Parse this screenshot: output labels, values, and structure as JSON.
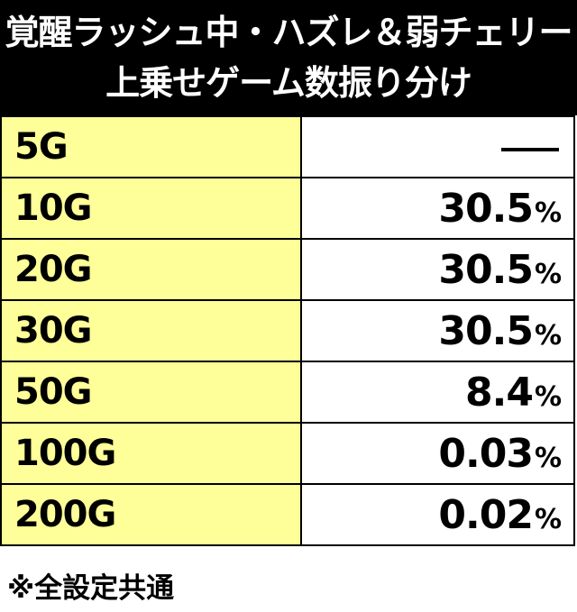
{
  "title": {
    "line1": "覚醒ラッシュ中・ハズレ＆弱チェリー",
    "line2": "上乗せゲーム数振り分け"
  },
  "rows": [
    {
      "label": "5G",
      "value": "—",
      "unit": ""
    },
    {
      "label": "10G",
      "value": "30.5",
      "unit": "%"
    },
    {
      "label": "20G",
      "value": "30.5",
      "unit": "%"
    },
    {
      "label": "30G",
      "value": "30.5",
      "unit": "%"
    },
    {
      "label": "50G",
      "value": "8.4",
      "unit": "%"
    },
    {
      "label": "100G",
      "value": "0.03",
      "unit": "%"
    },
    {
      "label": "200G",
      "value": "0.02",
      "unit": "%"
    }
  ],
  "footnote": "※全設定共通",
  "colors": {
    "header_bg": "#000000",
    "label_bg": "#ffff99"
  }
}
